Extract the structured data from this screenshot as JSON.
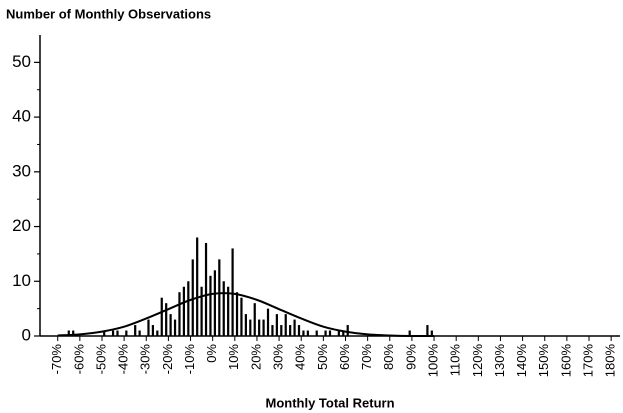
{
  "chart_data": {
    "type": "histogram",
    "title": "Number of Monthly Observations",
    "x_label": "Monthly Total Return",
    "bins": [
      -70,
      -68,
      -66,
      -64,
      -62,
      -60,
      -58,
      -56,
      -54,
      -52,
      -50,
      -48,
      -46,
      -44,
      -42,
      -40,
      -38,
      -36,
      -34,
      -32,
      -30,
      -28,
      -26,
      -24,
      -22,
      -20,
      -18,
      -16,
      -14,
      -12,
      -10,
      -8,
      -6,
      -4,
      -2,
      0,
      2,
      4,
      6,
      8,
      10,
      12,
      14,
      16,
      18,
      20,
      22,
      24,
      26,
      28,
      30,
      32,
      34,
      36,
      38,
      40,
      42,
      44,
      46,
      48,
      50,
      52,
      54,
      56,
      58,
      60,
      62,
      64,
      66,
      68,
      70,
      72,
      74,
      76,
      78,
      80,
      82,
      84,
      86,
      88,
      90,
      92,
      94,
      96,
      98,
      100
    ],
    "values": [
      0,
      0,
      1,
      1,
      0,
      0,
      0,
      0,
      0,
      0,
      1,
      0,
      1,
      1,
      0,
      1,
      0,
      2,
      1,
      0,
      3,
      2,
      1,
      7,
      6,
      4,
      3,
      8,
      9,
      10,
      14,
      18,
      9,
      17,
      11,
      12,
      14,
      10,
      9,
      16,
      8,
      7,
      4,
      3,
      6,
      3,
      3,
      5,
      2,
      4,
      2,
      4,
      2,
      3,
      2,
      1,
      1,
      0,
      1,
      0,
      1,
      1,
      0,
      1,
      1,
      2,
      0,
      0,
      0,
      0,
      0,
      0,
      0,
      0,
      0,
      0,
      0,
      0,
      0,
      1,
      0,
      0,
      0,
      2,
      1
    ],
    "color": "#000000",
    "fit_curve": {
      "x": [
        -70,
        -60,
        -50,
        -40,
        -30,
        -20,
        -10,
        0,
        10,
        20,
        30,
        40,
        50,
        60,
        70,
        80,
        90,
        100
      ],
      "values": [
        0.1,
        0.3,
        0.8,
        1.7,
        3.2,
        4.9,
        6.6,
        7.7,
        7.7,
        6.6,
        4.9,
        3.2,
        1.7,
        0.8,
        0.3,
        0.1,
        0.0,
        0.0
      ],
      "color": "#000000"
    },
    "xlim": [
      -78,
      184
    ],
    "ylim": [
      0,
      55
    ],
    "yticks": [
      0,
      10,
      20,
      30,
      40,
      50
    ],
    "minor_yticks": [
      5,
      15,
      25,
      35,
      45
    ],
    "xticks": [
      {
        "value": -70,
        "label": "-70%"
      },
      {
        "value": -60,
        "label": "-60%"
      },
      {
        "value": -50,
        "label": "-50%"
      },
      {
        "value": -40,
        "label": "-40%"
      },
      {
        "value": -30,
        "label": "-30%"
      },
      {
        "value": -20,
        "label": "-20%"
      },
      {
        "value": -10,
        "label": "-10%"
      },
      {
        "value": 0,
        "label": "0%"
      },
      {
        "value": 10,
        "label": "10%"
      },
      {
        "value": 20,
        "label": "20%"
      },
      {
        "value": 30,
        "label": "30%"
      },
      {
        "value": 40,
        "label": "40%"
      },
      {
        "value": 50,
        "label": "50%"
      },
      {
        "value": 60,
        "label": "60%"
      },
      {
        "value": 70,
        "label": "70%"
      },
      {
        "value": 80,
        "label": "80%"
      },
      {
        "value": 90,
        "label": "90%"
      },
      {
        "value": 100,
        "label": "100%"
      },
      {
        "value": 110,
        "label": "110%"
      },
      {
        "value": 120,
        "label": "120%"
      },
      {
        "value": 130,
        "label": "130%"
      },
      {
        "value": 140,
        "label": "140%"
      },
      {
        "value": 150,
        "label": "150%"
      },
      {
        "value": 160,
        "label": "160%"
      },
      {
        "value": 170,
        "label": "170%"
      },
      {
        "value": 180,
        "label": "180%"
      }
    ]
  }
}
